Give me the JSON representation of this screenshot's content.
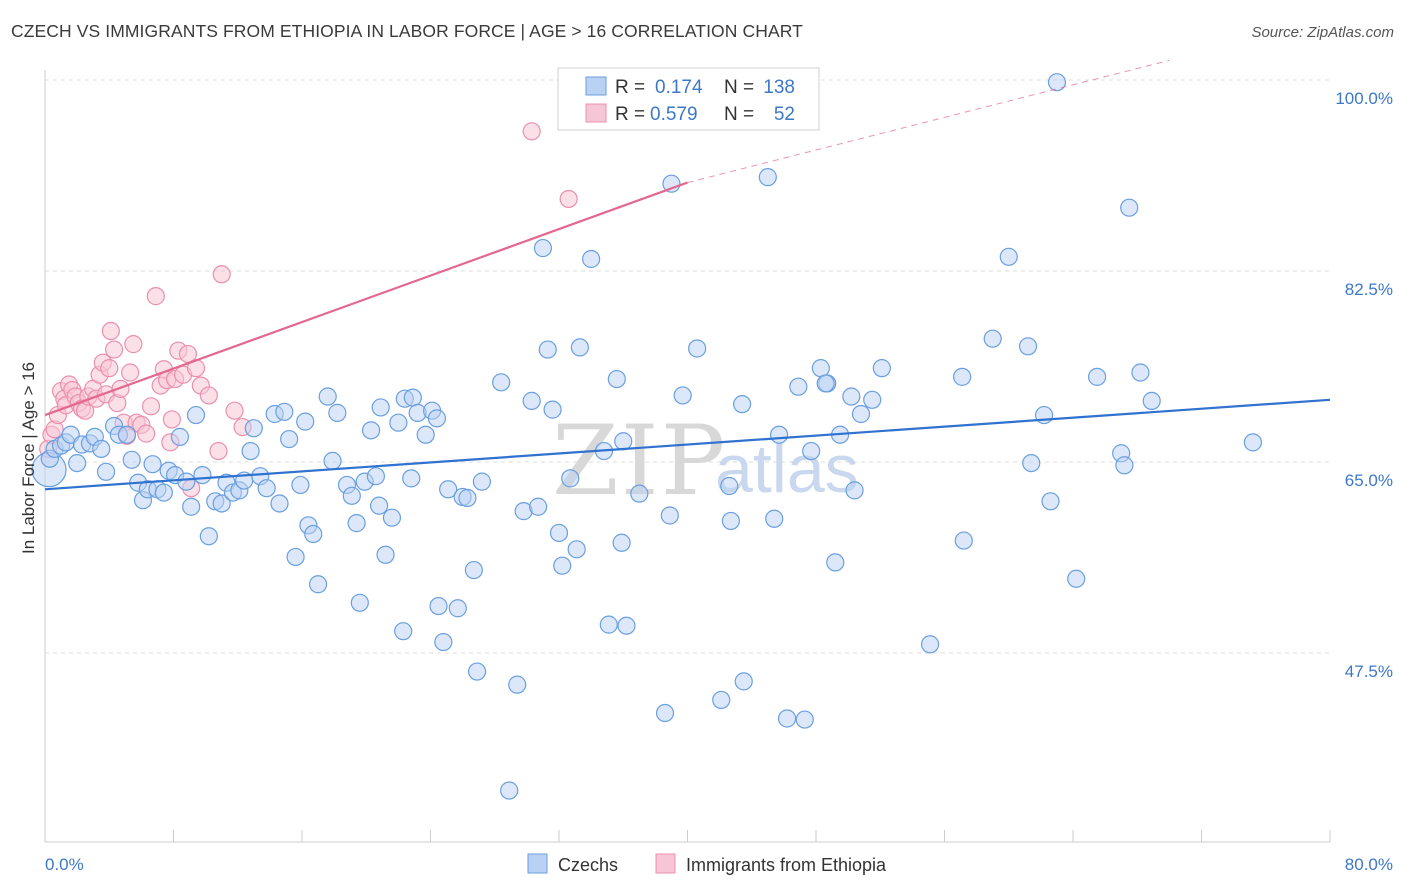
{
  "header": {
    "title": "CZECH VS IMMIGRANTS FROM ETHIOPIA IN LABOR FORCE | AGE > 16 CORRELATION CHART",
    "source": "Source: ZipAtlas.com"
  },
  "watermark": {
    "part1": "ZIP",
    "part2": "atlas"
  },
  "legend_box": {
    "rows": [
      {
        "r_label": "R =",
        "r_value": "0.174",
        "n_label": "N =",
        "n_value": "138"
      },
      {
        "r_label": "R =",
        "r_value": "0.579",
        "n_label": "N =",
        "n_value": "52"
      }
    ]
  },
  "chart_data": {
    "type": "scatter",
    "title": "CZECH VS IMMIGRANTS FROM ETHIOPIA IN LABOR FORCE | AGE > 16 CORRELATION CHART",
    "ylabel": "In Labor Force | Age > 16",
    "xlabel": "",
    "xlim": [
      0,
      80
    ],
    "ylim": [
      30,
      102
    ],
    "x_tick_labels": [
      "0.0%",
      "80.0%"
    ],
    "y_ticks": [
      {
        "value": 100.0,
        "label": "100.0%"
      },
      {
        "value": 82.5,
        "label": "82.5%"
      },
      {
        "value": 65.0,
        "label": "65.0%"
      },
      {
        "value": 47.5,
        "label": "47.5%"
      }
    ],
    "grid": "horizontal dashed",
    "legend_position": "bottom",
    "colors": {
      "czechs": "#6a9fe0",
      "czechs_fill": "#b9d2f3",
      "czechs_line": "#2f72cf",
      "ethiopia": "#ec8fae",
      "ethiopia_fill": "#f7c6d6",
      "ethiopia_line": "#e3688f"
    },
    "series": [
      {
        "name": "Czechs",
        "r": 0.174,
        "n": 138,
        "trend": {
          "x0": 0,
          "y0": 62.5,
          "x1": 80,
          "y1": 70.7
        },
        "points": [
          [
            0.3,
            65.3
          ],
          [
            0.6,
            66.2
          ],
          [
            1.0,
            66.5
          ],
          [
            1.3,
            66.8
          ],
          [
            1.6,
            67.5
          ],
          [
            2.0,
            64.9
          ],
          [
            2.3,
            66.6
          ],
          [
            2.8,
            66.7
          ],
          [
            3.1,
            67.3
          ],
          [
            3.5,
            66.2
          ],
          [
            3.8,
            64.1
          ],
          [
            4.3,
            68.3
          ],
          [
            4.6,
            67.5
          ],
          [
            5.1,
            67.5
          ],
          [
            5.4,
            65.2
          ],
          [
            5.8,
            63.1
          ],
          [
            6.1,
            61.5
          ],
          [
            6.4,
            62.5
          ],
          [
            6.7,
            64.8
          ],
          [
            7.0,
            62.5
          ],
          [
            7.4,
            62.2
          ],
          [
            7.7,
            64.2
          ],
          [
            8.1,
            63.8
          ],
          [
            8.4,
            67.3
          ],
          [
            8.8,
            63.2
          ],
          [
            9.1,
            60.9
          ],
          [
            9.4,
            69.3
          ],
          [
            9.8,
            63.8
          ],
          [
            10.2,
            58.2
          ],
          [
            10.6,
            61.4
          ],
          [
            11.0,
            61.2
          ],
          [
            11.3,
            63.1
          ],
          [
            11.7,
            62.2
          ],
          [
            12.1,
            62.4
          ],
          [
            12.4,
            63.3
          ],
          [
            12.8,
            66.0
          ],
          [
            13.0,
            68.1
          ],
          [
            13.4,
            63.7
          ],
          [
            13.8,
            62.6
          ],
          [
            14.3,
            69.4
          ],
          [
            14.6,
            61.2
          ],
          [
            14.9,
            69.6
          ],
          [
            15.2,
            67.1
          ],
          [
            15.6,
            56.3
          ],
          [
            15.9,
            62.9
          ],
          [
            16.2,
            68.7
          ],
          [
            16.4,
            59.2
          ],
          [
            16.7,
            58.4
          ],
          [
            17.0,
            53.8
          ],
          [
            17.6,
            71.0
          ],
          [
            17.9,
            65.1
          ],
          [
            18.2,
            69.5
          ],
          [
            18.8,
            62.9
          ],
          [
            19.1,
            61.9
          ],
          [
            19.4,
            59.4
          ],
          [
            19.6,
            52.1
          ],
          [
            19.9,
            63.2
          ],
          [
            20.6,
            63.7
          ],
          [
            20.8,
            61.0
          ],
          [
            20.3,
            67.9
          ],
          [
            20.9,
            70.0
          ],
          [
            21.2,
            56.5
          ],
          [
            21.6,
            59.9
          ],
          [
            22.0,
            68.6
          ],
          [
            22.4,
            70.8
          ],
          [
            22.9,
            70.9
          ],
          [
            23.2,
            69.5
          ],
          [
            23.7,
            67.5
          ],
          [
            24.1,
            69.7
          ],
          [
            24.4,
            69.0
          ],
          [
            22.8,
            63.5
          ],
          [
            22.3,
            49.5
          ],
          [
            24.5,
            51.8
          ],
          [
            24.8,
            48.5
          ],
          [
            25.1,
            62.5
          ],
          [
            25.7,
            51.6
          ],
          [
            26.0,
            61.8
          ],
          [
            26.3,
            61.7
          ],
          [
            26.7,
            55.1
          ],
          [
            26.9,
            45.8
          ],
          [
            27.2,
            63.2
          ],
          [
            28.4,
            72.3
          ],
          [
            28.9,
            34.9
          ],
          [
            29.4,
            44.6
          ],
          [
            29.8,
            60.5
          ],
          [
            30.3,
            70.6
          ],
          [
            30.7,
            60.9
          ],
          [
            31.0,
            84.6
          ],
          [
            31.3,
            75.3
          ],
          [
            31.6,
            69.8
          ],
          [
            32.0,
            58.5
          ],
          [
            32.2,
            55.5
          ],
          [
            32.7,
            63.5
          ],
          [
            33.1,
            57.0
          ],
          [
            33.3,
            75.5
          ],
          [
            34.0,
            83.6
          ],
          [
            34.8,
            66.0
          ],
          [
            35.1,
            50.1
          ],
          [
            35.6,
            72.6
          ],
          [
            36.0,
            66.9
          ],
          [
            36.2,
            50.0
          ],
          [
            35.9,
            57.6
          ],
          [
            37.0,
            62.1
          ],
          [
            38.6,
            42.0
          ],
          [
            38.9,
            60.1
          ],
          [
            39.0,
            90.5
          ],
          [
            39.7,
            71.1
          ],
          [
            40.6,
            75.4
          ],
          [
            42.1,
            43.2
          ],
          [
            42.6,
            62.8
          ],
          [
            42.7,
            59.6
          ],
          [
            43.4,
            70.3
          ],
          [
            43.5,
            44.9
          ],
          [
            45.0,
            91.1
          ],
          [
            45.4,
            59.8
          ],
          [
            45.7,
            67.5
          ],
          [
            46.2,
            41.5
          ],
          [
            46.9,
            71.9
          ],
          [
            47.3,
            41.4
          ],
          [
            47.7,
            66.0
          ],
          [
            48.7,
            72.2
          ],
          [
            49.2,
            55.8
          ],
          [
            48.3,
            73.6
          ],
          [
            48.6,
            72.2
          ],
          [
            49.5,
            67.5
          ],
          [
            50.2,
            71.0
          ],
          [
            50.4,
            62.4
          ],
          [
            50.8,
            69.4
          ],
          [
            51.5,
            70.7
          ],
          [
            52.1,
            73.6
          ],
          [
            55.1,
            48.3
          ],
          [
            57.1,
            72.8
          ],
          [
            57.2,
            57.8
          ],
          [
            59.0,
            76.3
          ],
          [
            60.0,
            83.8
          ],
          [
            61.2,
            75.6
          ],
          [
            61.4,
            64.9
          ],
          [
            62.2,
            69.3
          ],
          [
            62.6,
            61.4
          ],
          [
            63.0,
            99.8
          ],
          [
            64.2,
            54.3
          ],
          [
            65.5,
            72.8
          ],
          [
            67.0,
            65.8
          ],
          [
            67.2,
            64.7
          ],
          [
            67.5,
            88.3
          ],
          [
            68.2,
            73.2
          ],
          [
            68.9,
            70.6
          ],
          [
            75.2,
            66.8
          ]
        ]
      },
      {
        "name": "Immigrants from Ethiopia",
        "r": 0.579,
        "n": 52,
        "trend": {
          "x0": 0,
          "y0": 69.3,
          "x1": 40,
          "y1": 90.6,
          "x_dash_end": 70,
          "y_dash_end": 101.8
        },
        "points": [
          [
            0.2,
            66.2
          ],
          [
            0.4,
            67.5
          ],
          [
            0.6,
            68.0
          ],
          [
            0.8,
            69.3
          ],
          [
            1.0,
            71.5
          ],
          [
            1.2,
            70.8
          ],
          [
            1.3,
            70.2
          ],
          [
            1.5,
            72.1
          ],
          [
            1.7,
            71.6
          ],
          [
            1.9,
            71.0
          ],
          [
            2.1,
            70.4
          ],
          [
            2.3,
            69.9
          ],
          [
            2.5,
            69.7
          ],
          [
            2.7,
            71.0
          ],
          [
            3.0,
            71.7
          ],
          [
            3.2,
            70.8
          ],
          [
            3.4,
            73.0
          ],
          [
            3.6,
            74.1
          ],
          [
            3.8,
            71.2
          ],
          [
            4.0,
            73.6
          ],
          [
            4.1,
            77.0
          ],
          [
            4.3,
            75.3
          ],
          [
            4.5,
            70.4
          ],
          [
            4.7,
            71.7
          ],
          [
            4.9,
            68.6
          ],
          [
            5.1,
            67.4
          ],
          [
            5.3,
            73.2
          ],
          [
            5.5,
            75.8
          ],
          [
            5.7,
            68.6
          ],
          [
            6.0,
            68.4
          ],
          [
            6.3,
            67.6
          ],
          [
            6.6,
            70.1
          ],
          [
            6.9,
            80.2
          ],
          [
            7.2,
            72.0
          ],
          [
            7.4,
            73.5
          ],
          [
            7.6,
            72.5
          ],
          [
            7.8,
            66.8
          ],
          [
            7.9,
            68.9
          ],
          [
            8.1,
            72.6
          ],
          [
            8.3,
            75.2
          ],
          [
            8.6,
            73.0
          ],
          [
            8.9,
            74.9
          ],
          [
            9.1,
            62.6
          ],
          [
            9.4,
            73.6
          ],
          [
            9.7,
            72.0
          ],
          [
            10.2,
            71.1
          ],
          [
            10.8,
            66.0
          ],
          [
            11.0,
            82.2
          ],
          [
            11.8,
            69.7
          ],
          [
            12.3,
            68.2
          ],
          [
            30.3,
            95.3
          ],
          [
            32.6,
            89.1
          ]
        ]
      }
    ]
  },
  "bottom_legend": {
    "items": [
      "Czechs",
      "Immigrants from Ethiopia"
    ]
  }
}
